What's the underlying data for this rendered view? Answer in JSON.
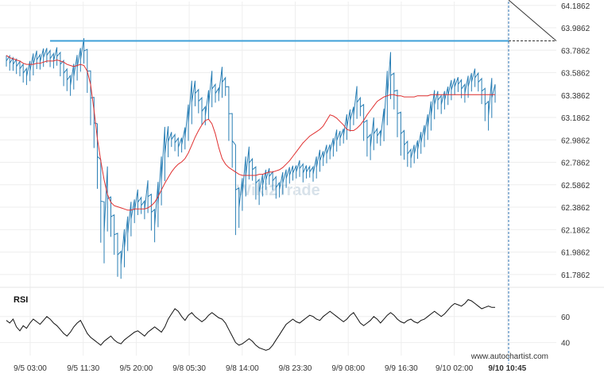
{
  "watermark": "Wiki2Trade",
  "footer_text": "www.autochartist.com",
  "chart_data": {
    "type": "line",
    "price_panel": {
      "ylim": [
        61.7,
        64.22
      ],
      "y_ticks": [
        "64.1862",
        "63.9862",
        "63.7862",
        "63.5862",
        "63.3862",
        "63.1862",
        "62.9862",
        "62.7862",
        "62.5862",
        "62.3862",
        "62.1862",
        "61.9862",
        "61.7862"
      ],
      "y_tick_values": [
        64.1862,
        63.9862,
        63.7862,
        63.5862,
        63.3862,
        63.1862,
        62.9862,
        62.7862,
        62.5862,
        62.3862,
        62.1862,
        61.9862,
        61.7862
      ],
      "resistance_level": 63.87,
      "projection": {
        "from_index": 150,
        "to_value": 63.87
      },
      "series": [
        {
          "values": [
            63.69,
            63.67,
            63.66,
            63.64,
            63.62,
            63.58,
            63.55,
            63.6,
            63.66,
            63.7,
            63.68,
            63.72,
            63.74,
            63.71,
            63.69,
            63.73,
            63.66,
            63.58,
            63.52,
            63.47,
            63.55,
            63.63,
            63.7,
            63.78,
            63.6,
            63.36,
            63.14,
            62.84,
            62.44,
            62.16,
            62.46,
            62.3,
            62.14,
            61.96,
            61.87,
            62.02,
            62.15,
            62.28,
            62.35,
            62.43,
            62.4,
            62.36,
            62.48,
            62.34,
            62.22,
            62.41,
            62.62,
            62.86,
            62.97,
            62.99,
            62.96,
            62.92,
            62.94,
            63.0,
            63.14,
            63.32,
            63.4,
            63.33,
            63.24,
            63.2,
            63.3,
            63.44,
            63.4,
            63.39,
            63.5,
            63.46,
            63.22,
            62.98,
            62.54,
            62.38,
            62.5,
            62.66,
            62.78,
            62.72,
            62.6,
            62.52,
            62.58,
            62.63,
            62.66,
            62.62,
            62.56,
            62.54,
            62.6,
            62.64,
            62.67,
            62.69,
            62.7,
            62.73,
            62.69,
            62.7,
            62.7,
            62.68,
            62.74,
            62.8,
            62.82,
            62.86,
            62.88,
            62.92,
            62.98,
            63.0,
            63.02,
            63.1,
            63.16,
            63.2,
            63.32,
            63.28,
            63.14,
            63.0,
            62.92,
            63.04,
            63.02,
            63.0,
            63.12,
            63.36,
            63.56,
            63.42,
            63.22,
            63.04,
            62.94,
            62.86,
            62.82,
            62.86,
            62.9,
            62.96,
            63.02,
            63.1,
            63.2,
            63.3,
            63.34,
            63.3,
            63.34,
            63.38,
            63.43,
            63.46,
            63.48,
            63.44,
            63.4,
            63.46,
            63.5,
            63.54,
            63.5,
            63.42,
            63.3,
            63.2,
            63.36,
            63.4
          ]
        },
        {
          "values": [
            63.74,
            63.72,
            63.71,
            63.7,
            63.69,
            63.67,
            63.66,
            63.66,
            63.66,
            63.67,
            63.67,
            63.68,
            63.69,
            63.69,
            63.69,
            63.7,
            63.69,
            63.68,
            63.66,
            63.65,
            63.64,
            63.65,
            63.66,
            63.65,
            63.6,
            63.48,
            63.25,
            63.0,
            62.8,
            62.63,
            62.5,
            62.43,
            62.4,
            62.39,
            62.38,
            62.37,
            62.36,
            62.36,
            62.37,
            62.37,
            62.37,
            62.37,
            62.38,
            62.4,
            62.43,
            62.48,
            62.54,
            62.6,
            62.65,
            62.7,
            62.74,
            62.77,
            62.79,
            62.82,
            62.87,
            62.94,
            63.01,
            63.07,
            63.12,
            63.16,
            63.17,
            63.13,
            63.04,
            62.92,
            62.82,
            62.77,
            62.74,
            62.72,
            62.7,
            62.68,
            62.67,
            62.67,
            62.67,
            62.67,
            62.67,
            62.68,
            62.68,
            62.69,
            62.7,
            62.7,
            62.71,
            62.72,
            62.74,
            62.77,
            62.8,
            62.84,
            62.88,
            62.92,
            62.96,
            62.99,
            63.02,
            63.04,
            63.06,
            63.08,
            63.11,
            63.16,
            63.21,
            63.2,
            63.18,
            63.15,
            63.12,
            63.08,
            63.07,
            63.07,
            63.09,
            63.12,
            63.16,
            63.21,
            63.25,
            63.29,
            63.33,
            63.35,
            63.37,
            63.38,
            63.39,
            63.39,
            63.38,
            63.38,
            63.37,
            63.37,
            63.37,
            63.37,
            63.38,
            63.38,
            63.38,
            63.38,
            63.39,
            63.39,
            63.39,
            63.39,
            63.39,
            63.39,
            63.39,
            63.39,
            63.39,
            63.39,
            63.39,
            63.39,
            63.39,
            63.39,
            63.39,
            63.39,
            63.39,
            63.39,
            63.39,
            63.39
          ]
        }
      ]
    },
    "rsi_panel": {
      "label": "RSI",
      "ylim": [
        30,
        80
      ],
      "y_ticks": [
        "60",
        "40"
      ],
      "y_tick_values": [
        60,
        40
      ],
      "values": [
        57,
        55,
        58,
        52,
        49,
        53,
        51,
        55,
        58,
        56,
        54,
        57,
        60,
        58,
        55,
        53,
        50,
        47,
        45,
        48,
        52,
        55,
        57,
        52,
        47,
        44,
        42,
        40,
        38,
        41,
        43,
        45,
        42,
        40,
        39,
        42,
        44,
        46,
        48,
        49,
        47,
        45,
        48,
        50,
        52,
        50,
        48,
        52,
        58,
        62,
        66,
        64,
        60,
        57,
        61,
        63,
        60,
        58,
        56,
        58,
        61,
        63,
        61,
        59,
        58,
        55,
        50,
        45,
        40,
        38,
        39,
        41,
        43,
        41,
        38,
        36,
        35,
        34,
        35,
        38,
        42,
        46,
        50,
        54,
        56,
        58,
        56,
        55,
        57,
        59,
        61,
        60,
        58,
        57,
        60,
        62,
        64,
        62,
        60,
        58,
        56,
        58,
        61,
        63,
        59,
        55,
        53,
        55,
        57,
        60,
        58,
        55,
        58,
        61,
        63,
        61,
        58,
        56,
        55,
        57,
        58,
        56,
        55,
        57,
        58,
        60,
        62,
        64,
        62,
        60,
        62,
        65,
        68,
        70,
        69,
        68,
        70,
        73,
        72,
        70,
        68,
        66,
        67,
        68,
        67,
        67
      ]
    },
    "x_tick_labels": [
      "9/5 03:00",
      "9/5 11:30",
      "9/5 20:00",
      "9/8 05:30",
      "9/8 14:00",
      "9/8 23:30",
      "9/9 08:00",
      "9/9 16:30",
      "9/10 02:00",
      "9/10 10:45"
    ],
    "x_tick_index": [
      4,
      23,
      42,
      61,
      80,
      99,
      118,
      137,
      156,
      174
    ],
    "n_points": 150,
    "colors": {
      "price": "#2a7fb5",
      "moving_average": "#e03030",
      "resistance": "#3fa0d8",
      "rsi": "#111111",
      "grid": "#eeeeee",
      "projection": "#333333",
      "current_time_line": "#2a6fb0"
    }
  }
}
